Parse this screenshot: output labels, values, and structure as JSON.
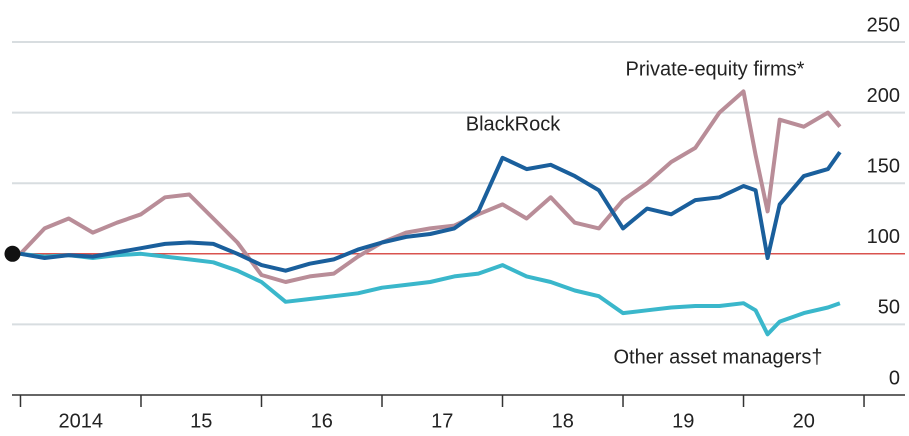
{
  "chart_data": {
    "type": "line",
    "x": [
      2014.0,
      2014.2,
      2014.4,
      2014.6,
      2014.8,
      2015.0,
      2015.2,
      2015.4,
      2015.6,
      2015.8,
      2016.0,
      2016.2,
      2016.4,
      2016.6,
      2016.8,
      2017.0,
      2017.2,
      2017.4,
      2017.6,
      2017.8,
      2018.0,
      2018.2,
      2018.4,
      2018.6,
      2018.8,
      2019.0,
      2019.2,
      2019.4,
      2019.6,
      2019.8,
      2020.0,
      2020.1,
      2020.2,
      2020.3,
      2020.5,
      2020.7,
      2020.8
    ],
    "series": [
      {
        "name": "Private-equity firms*",
        "color": "#b98d98",
        "values": [
          100,
          118,
          125,
          115,
          122,
          128,
          140,
          142,
          125,
          108,
          85,
          80,
          84,
          86,
          98,
          108,
          115,
          118,
          120,
          128,
          135,
          125,
          140,
          122,
          118,
          138,
          150,
          165,
          175,
          200,
          215,
          170,
          130,
          195,
          190,
          200,
          190
        ]
      },
      {
        "name": "Other asset managers†",
        "color": "#3ab7cb",
        "values": [
          100,
          98,
          99,
          97,
          99,
          100,
          98,
          96,
          94,
          88,
          80,
          66,
          68,
          70,
          72,
          76,
          78,
          80,
          84,
          86,
          92,
          84,
          80,
          74,
          70,
          58,
          60,
          62,
          63,
          63,
          65,
          60,
          43,
          52,
          58,
          62,
          65
        ]
      },
      {
        "name": "BlackRock",
        "color": "#1a5f9c",
        "values": [
          100,
          97,
          99,
          98,
          101,
          104,
          107,
          108,
          107,
          100,
          92,
          88,
          93,
          96,
          103,
          108,
          112,
          114,
          118,
          130,
          168,
          160,
          163,
          155,
          145,
          118,
          132,
          128,
          138,
          140,
          148,
          145,
          97,
          135,
          155,
          160,
          172
        ]
      }
    ],
    "xlim": [
      2013.83,
      2021.34
    ],
    "xticks": [
      {
        "value": 2014.5,
        "label": "2014"
      },
      {
        "value": 2015.5,
        "label": "15"
      },
      {
        "value": 2016.5,
        "label": "16"
      },
      {
        "value": 2017.5,
        "label": "17"
      },
      {
        "value": 2018.5,
        "label": "18"
      },
      {
        "value": 2019.5,
        "label": "19"
      },
      {
        "value": 2020.5,
        "label": "20"
      }
    ],
    "ylim": [
      0,
      250
    ],
    "yticks": [
      0,
      50,
      100,
      150,
      200,
      250
    ],
    "grid": true,
    "baseline": 100,
    "baseline_color": "#d9534f"
  }
}
